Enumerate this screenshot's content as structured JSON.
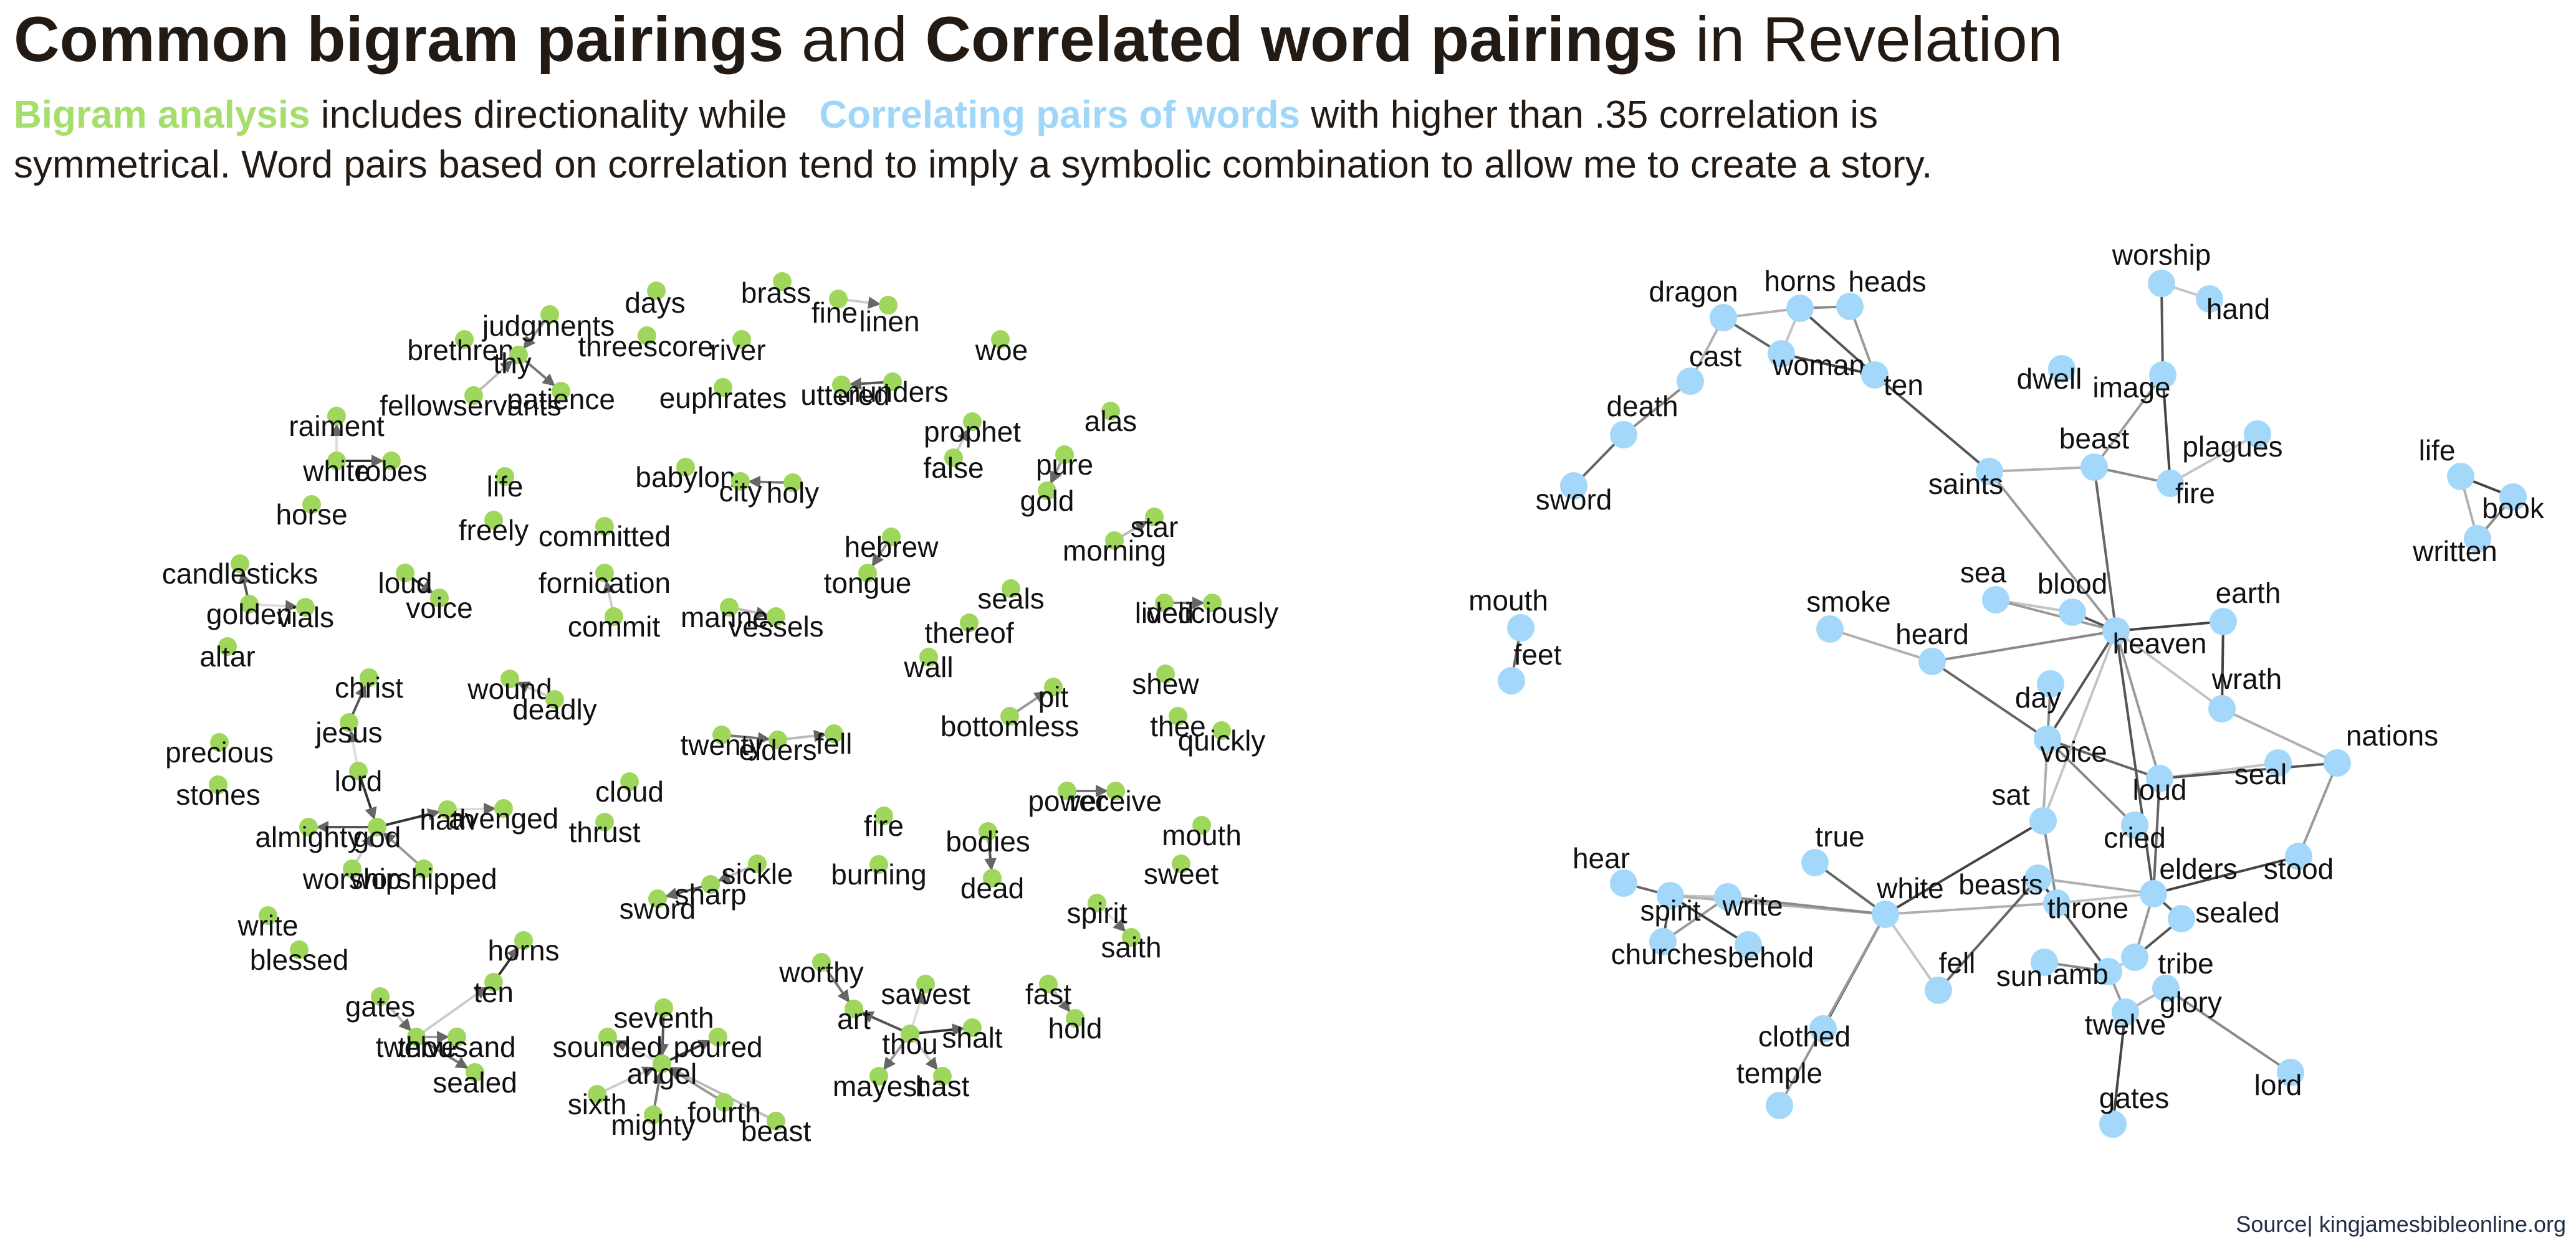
{
  "title": {
    "part1": "Common bigram pairings",
    "part2": "and",
    "part3": "Correlated word pairings",
    "part4": "in Revelation"
  },
  "subtitle": {
    "green": "Bigram analysis",
    "text1": "includes directionality while",
    "blue": "Correlating pairs of words",
    "text2": "with higher than .35 correlation is",
    "line2": "symmetrical. Word pairs based on correlation tend to imply a symbolic combination to allow me to create a story."
  },
  "source": "Source| kingjamesbibleonline.org",
  "colors": {
    "bigram_node": "#9fd65c",
    "corr_node": "#a3d8fa",
    "title": "#231a14"
  },
  "bigram_network": {
    "nodes": [
      "brass",
      "fine",
      "linen",
      "days",
      "judgments",
      "brethren",
      "thy",
      "fellowservants",
      "patience",
      "threescore",
      "river",
      "woe",
      "euphrates",
      "thunders",
      "uttered",
      "raiment",
      "white",
      "robes",
      "horse",
      "prophet",
      "false",
      "alas",
      "pure",
      "gold",
      "babylon",
      "city",
      "holy",
      "life",
      "freely",
      "committed",
      "star",
      "morning",
      "candlesticks",
      "golden",
      "vials",
      "altar",
      "loud",
      "voice",
      "fornication",
      "commit",
      "hebrew",
      "tongue",
      "seals",
      "thereof",
      "wall",
      "lived",
      "deliciously",
      "manner",
      "vessels",
      "christ",
      "jesus",
      "wound",
      "deadly",
      "pit",
      "bottomless",
      "shew",
      "thee",
      "quickly",
      "twenty",
      "elders",
      "fell",
      "precious",
      "stones",
      "lord",
      "cloud",
      "thrust",
      "hath",
      "avenged",
      "almighty",
      "god",
      "worship",
      "worshipped",
      "power",
      "receive",
      "mouth",
      "sweet",
      "fire",
      "burning",
      "bodies",
      "dead",
      "sickle",
      "sharp",
      "sword",
      "write",
      "blessed",
      "spirit",
      "saith",
      "horns",
      "ten",
      "worthy",
      "sawest",
      "art",
      "shalt",
      "thou",
      "hast",
      "mayest",
      "fast",
      "hold",
      "gates",
      "twelve",
      "thousand",
      "sealed",
      "seventh",
      "sounded",
      "poured",
      "angel",
      "sixth",
      "fourth",
      "mighty",
      "beast"
    ],
    "edges": [
      [
        "fine",
        "linen"
      ],
      [
        "judgments",
        "thy"
      ],
      [
        "thy",
        "patience"
      ],
      [
        "fellowservants",
        "thy"
      ],
      [
        "thunders",
        "uttered"
      ],
      [
        "white",
        "raiment"
      ],
      [
        "white",
        "robes"
      ],
      [
        "false",
        "prophet"
      ],
      [
        "pure",
        "gold"
      ],
      [
        "holy",
        "city"
      ],
      [
        "morning",
        "star"
      ],
      [
        "golden",
        "candlesticks"
      ],
      [
        "golden",
        "vials"
      ],
      [
        "loud",
        "voice"
      ],
      [
        "commit",
        "fornication"
      ],
      [
        "hebrew",
        "tongue"
      ],
      [
        "lived",
        "deliciously"
      ],
      [
        "manner",
        "vessels"
      ],
      [
        "jesus",
        "christ"
      ],
      [
        "lord",
        "jesus"
      ],
      [
        "lord",
        "god"
      ],
      [
        "deadly",
        "wound"
      ],
      [
        "bottomless",
        "pit"
      ],
      [
        "twenty",
        "elders"
      ],
      [
        "elders",
        "fell"
      ],
      [
        "god",
        "almighty"
      ],
      [
        "hath",
        "avenged"
      ],
      [
        "god",
        "hath"
      ],
      [
        "worship",
        "god"
      ],
      [
        "worshipped",
        "god"
      ],
      [
        "power",
        "receive"
      ],
      [
        "sickle",
        "sharp"
      ],
      [
        "sharp",
        "sword"
      ],
      [
        "spirit",
        "saith"
      ],
      [
        "ten",
        "horns"
      ],
      [
        "twelve",
        "ten"
      ],
      [
        "twelve",
        "thousand"
      ],
      [
        "twelve",
        "sealed"
      ],
      [
        "gates",
        "twelve"
      ],
      [
        "thou",
        "art"
      ],
      [
        "thou",
        "sawest"
      ],
      [
        "thou",
        "shalt"
      ],
      [
        "thou",
        "hast"
      ],
      [
        "thou",
        "mayest"
      ],
      [
        "worthy",
        "art"
      ],
      [
        "fast",
        "hold"
      ],
      [
        "seventh",
        "angel"
      ],
      [
        "angel",
        "sounded"
      ],
      [
        "angel",
        "poured"
      ],
      [
        "sixth",
        "angel"
      ],
      [
        "fourth",
        "angel"
      ],
      [
        "mighty",
        "angel"
      ],
      [
        "beast",
        "angel"
      ],
      [
        "bodies",
        "dead"
      ]
    ]
  },
  "correlation_network": {
    "nodes": [
      "dragon",
      "horns",
      "heads",
      "cast",
      "woman",
      "ten",
      "death",
      "sword",
      "worship",
      "hand",
      "dwell",
      "image",
      "plagues",
      "beast",
      "saints",
      "fire",
      "life",
      "book",
      "written",
      "mouth",
      "feet",
      "smoke",
      "sea",
      "blood",
      "earth",
      "heard",
      "heaven",
      "wrath",
      "day",
      "nations",
      "voice",
      "seal",
      "loud",
      "sat",
      "stood",
      "true",
      "hear",
      "spirit",
      "write",
      "churches",
      "behold",
      "white",
      "beasts",
      "cried",
      "elders",
      "throne",
      "sealed",
      "tribe",
      "lamb",
      "fell",
      "sun",
      "glory",
      "twelve",
      "clothed",
      "temple",
      "gates",
      "lord"
    ],
    "edges": [
      [
        "dragon",
        "horns"
      ],
      [
        "horns",
        "heads"
      ],
      [
        "dragon",
        "woman"
      ],
      [
        "horns",
        "woman"
      ],
      [
        "horns",
        "ten"
      ],
      [
        "heads",
        "ten"
      ],
      [
        "woman",
        "ten"
      ],
      [
        "dragon",
        "cast"
      ],
      [
        "cast",
        "death"
      ],
      [
        "death",
        "sword"
      ],
      [
        "worship",
        "hand"
      ],
      [
        "worship",
        "image"
      ],
      [
        "image",
        "beast"
      ],
      [
        "image",
        "fire"
      ],
      [
        "beast",
        "saints"
      ],
      [
        "beast",
        "fire"
      ],
      [
        "beast",
        "heaven"
      ],
      [
        "plagues",
        "fire"
      ],
      [
        "ten",
        "saints"
      ],
      [
        "saints",
        "heaven"
      ],
      [
        "life",
        "book"
      ],
      [
        "life",
        "written"
      ],
      [
        "book",
        "written"
      ],
      [
        "mouth",
        "feet"
      ],
      [
        "sea",
        "blood"
      ],
      [
        "blood",
        "heaven"
      ],
      [
        "sea",
        "heaven"
      ],
      [
        "heaven",
        "earth"
      ],
      [
        "smoke",
        "heard"
      ],
      [
        "heard",
        "heaven"
      ],
      [
        "heard",
        "voice"
      ],
      [
        "heaven",
        "wrath"
      ],
      [
        "heaven",
        "voice"
      ],
      [
        "heaven",
        "loud"
      ],
      [
        "earth",
        "wrath"
      ],
      [
        "wrath",
        "nations"
      ],
      [
        "day",
        "voice"
      ],
      [
        "voice",
        "loud"
      ],
      [
        "loud",
        "seal"
      ],
      [
        "loud",
        "nations"
      ],
      [
        "nations",
        "stood"
      ],
      [
        "stood",
        "elders"
      ],
      [
        "voice",
        "sat"
      ],
      [
        "sat",
        "throne"
      ],
      [
        "loud",
        "elders"
      ],
      [
        "elders",
        "throne"
      ],
      [
        "elders",
        "sealed"
      ],
      [
        "elders",
        "tribe"
      ],
      [
        "beasts",
        "throne"
      ],
      [
        "beasts",
        "elders"
      ],
      [
        "cried",
        "voice"
      ],
      [
        "throne",
        "lamb"
      ],
      [
        "lamb",
        "tribe"
      ],
      [
        "sealed",
        "tribe"
      ],
      [
        "lamb",
        "twelve"
      ],
      [
        "twelve",
        "gates"
      ],
      [
        "twelve",
        "glory"
      ],
      [
        "glory",
        "lord"
      ],
      [
        "hear",
        "spirit"
      ],
      [
        "spirit",
        "write"
      ],
      [
        "spirit",
        "churches"
      ],
      [
        "churches",
        "write"
      ],
      [
        "spirit",
        "behold"
      ],
      [
        "white",
        "spirit"
      ],
      [
        "white",
        "write"
      ],
      [
        "white",
        "true"
      ],
      [
        "white",
        "fell"
      ],
      [
        "white",
        "clothed"
      ],
      [
        "white",
        "temple"
      ],
      [
        "white",
        "sat"
      ],
      [
        "white",
        "throne"
      ],
      [
        "sun",
        "lamb"
      ],
      [
        "fell",
        "beasts"
      ],
      [
        "heaven",
        "sat"
      ],
      [
        "elders",
        "heaven"
      ]
    ]
  }
}
